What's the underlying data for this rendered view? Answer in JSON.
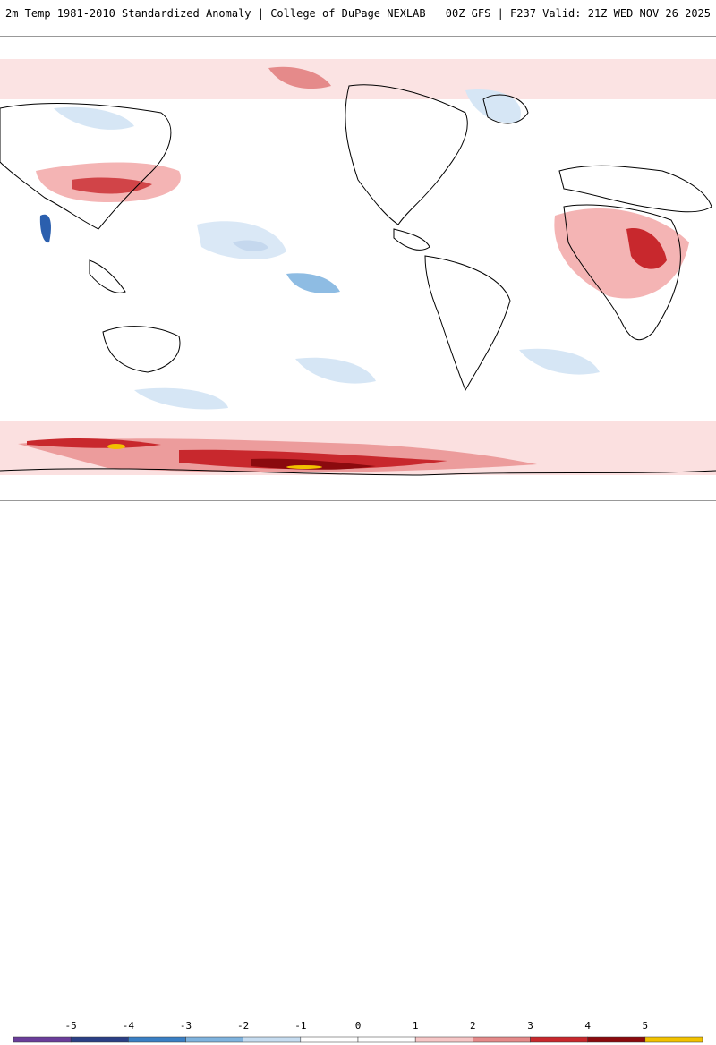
{
  "header": {
    "left_title": "2m Temp 1981-2010 Standardized Anomaly | College of DuPage NEXLAB",
    "right_title": "00Z GFS | F237 Valid: 21Z WED NOV 26 2025"
  },
  "legend": {
    "ticks": [
      {
        "label": "-5"
      },
      {
        "label": "-4"
      },
      {
        "label": "-3"
      },
      {
        "label": "-2"
      },
      {
        "label": "-1"
      },
      {
        "label": "0"
      },
      {
        "label": "1"
      },
      {
        "label": "2"
      },
      {
        "label": "3"
      },
      {
        "label": "4"
      },
      {
        "label": "5"
      }
    ],
    "colors": [
      "#6a3d9a",
      "#2b3f85",
      "#3a7fc4",
      "#7fb3de",
      "#c6dcf0",
      "#ffffff",
      "#ffffff",
      "#f6c6c6",
      "#e58a8a",
      "#c8282d",
      "#8b0a0e",
      "#f2c200"
    ]
  },
  "map": {
    "region": "global",
    "colors": {
      "warm_light": "#f8d6d6",
      "warm_mid": "#ec9c9c",
      "warm_strong": "#c8282d",
      "warm_extreme": "#8b0a0e",
      "hot_peak": "#f2c200",
      "cool_light": "#d6e6f5",
      "cool_mid": "#8ebce3",
      "cool_strong": "#2b5fae",
      "coast": "#000000"
    }
  }
}
